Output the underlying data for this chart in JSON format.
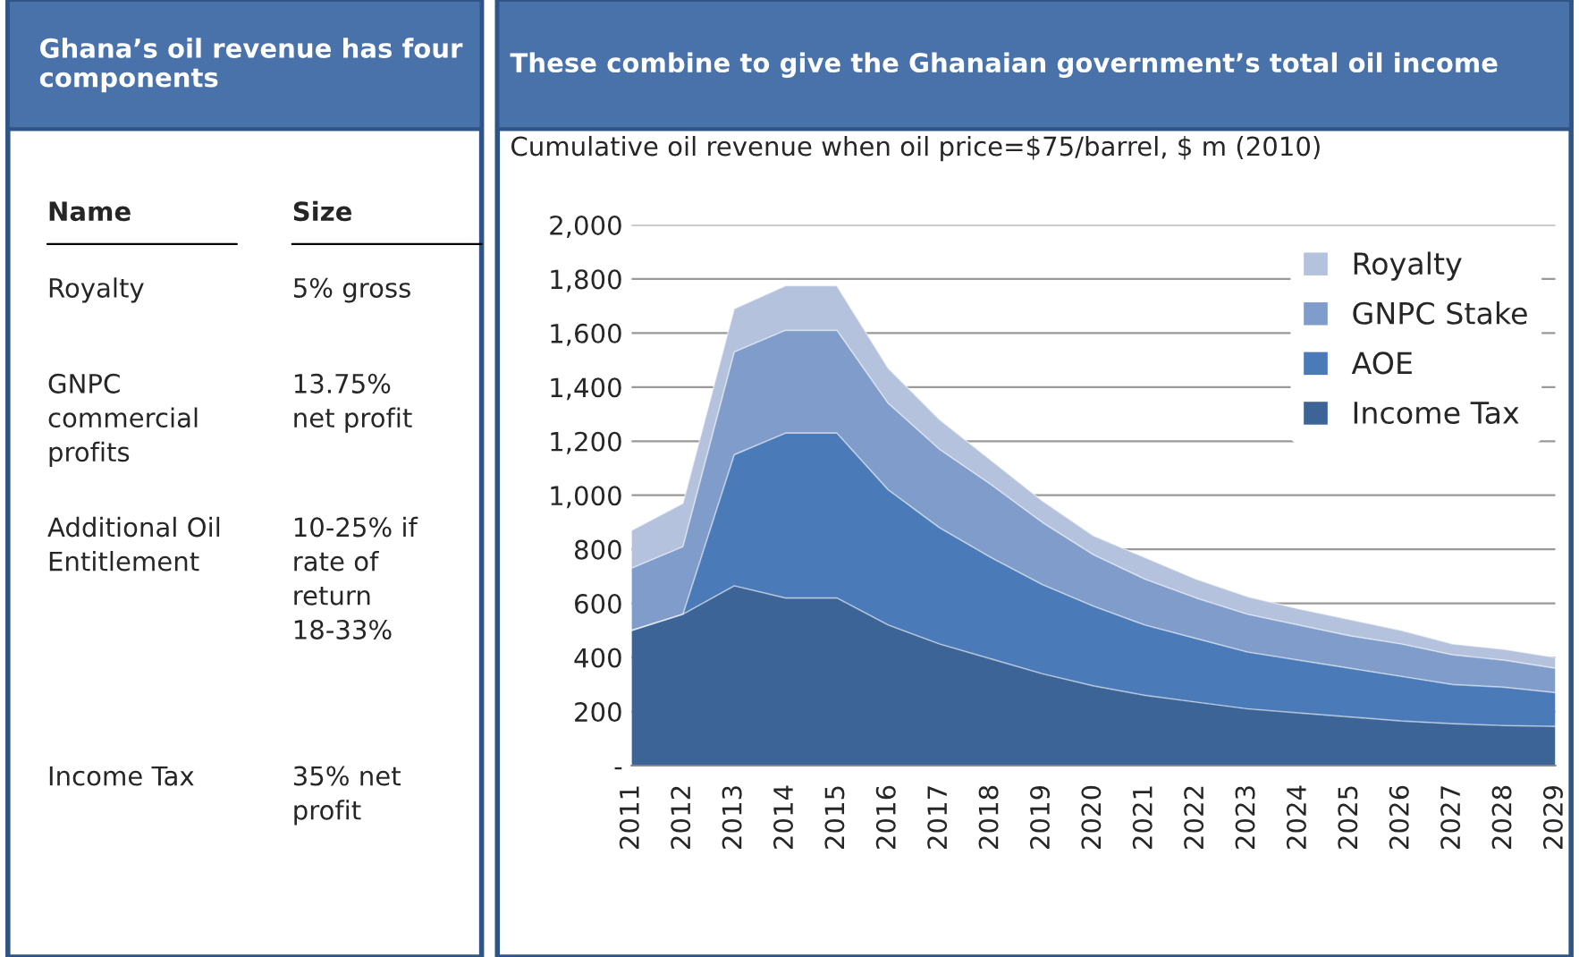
{
  "chart_data": [
    {
      "type": "other",
      "title": "Ghana’s oil revenue has four components",
      "annotations": [
        "Name",
        "Size",
        "Royalty",
        "5% gross",
        "GNPC\ncommercial\nprofits",
        "13.75%\nnet profit",
        "Additional Oil\nEntitlement",
        "10-25% if\nrate of\nreturn\n18-33%",
        "Income Tax",
        "35% net\nprofit"
      ]
    },
    {
      "type": "area",
      "stacked": true,
      "title": "These combine to give the Ghanaian government’s total oil income",
      "subtitle": "Cumulative oil revenue when oil price=$75/barrel, $ m (2010)",
      "categories": [
        "2011",
        "2012",
        "2013",
        "2014",
        "2015",
        "2016",
        "2017",
        "2018",
        "2019",
        "2020",
        "2021",
        "2022",
        "2023",
        "2024",
        "2025",
        "2026",
        "2027",
        "2028",
        "2029"
      ],
      "series": [
        {
          "name": "Income Tax",
          "color": "#3c6496",
          "values": [
            500,
            560,
            665,
            620,
            620,
            520,
            450,
            395,
            340,
            295,
            260,
            235,
            210,
            195,
            180,
            165,
            155,
            148,
            145
          ]
        },
        {
          "name": "AOE",
          "color": "#4a7ab8",
          "values": [
            0,
            0,
            485,
            610,
            610,
            500,
            430,
            375,
            330,
            295,
            260,
            235,
            210,
            195,
            180,
            165,
            145,
            142,
            125
          ]
        },
        {
          "name": "GNPC Stake",
          "color": "#7f9ccb",
          "values": [
            230,
            250,
            380,
            380,
            380,
            320,
            290,
            270,
            230,
            190,
            170,
            150,
            140,
            130,
            120,
            120,
            110,
            100,
            90
          ]
        },
        {
          "name": "Royalty",
          "color": "#b4c2de",
          "values": [
            140,
            160,
            160,
            165,
            165,
            130,
            110,
            90,
            80,
            70,
            80,
            70,
            65,
            60,
            60,
            50,
            40,
            40,
            40
          ]
        }
      ],
      "ylim": [
        0,
        2000
      ],
      "yticks": [
        {
          "value": 0,
          "label": "-"
        },
        200,
        400,
        600,
        800,
        {
          "value": 1000,
          "label": "1,000"
        },
        {
          "value": 1200,
          "label": "1,200"
        },
        {
          "value": 1400,
          "label": "1,400"
        },
        {
          "value": 1600,
          "label": "1,600"
        },
        {
          "value": 1800,
          "label": "1,800"
        },
        {
          "value": 2000,
          "label": "2,000"
        }
      ],
      "grid": "y",
      "legend": "top right"
    }
  ]
}
